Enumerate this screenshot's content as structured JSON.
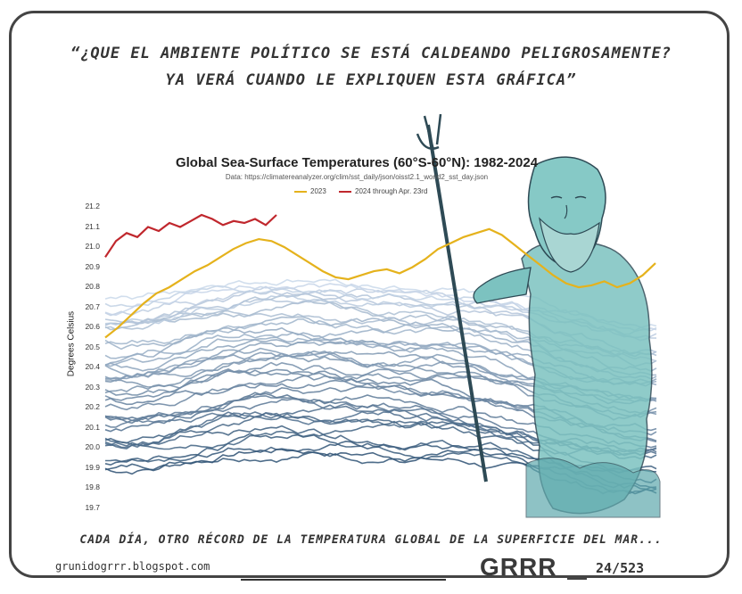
{
  "quote": {
    "line1": "“¿QUE EL AMBIENTE POLÍTICO SE ESTÁ CALDEANDO PELIGROSAMENTE?",
    "line2": "YA VERÁ CUANDO LE EXPLIQUEN ESTA GRÁFICA”"
  },
  "caption": "CADA DÍA, OTRO RÉCORD DE LA TEMPERATURA GLOBAL DE LA SUPERFICIE DEL MAR...",
  "blog_url": "grunidogrrr.blogspot.com",
  "signature": "GRRR",
  "strip_number": "24/523",
  "colors": {
    "year_2023": "#e5b21c",
    "year_2024": "#c0272d",
    "history_dark": "#2b4f72",
    "history_light": "#c9d8ea",
    "poseidon_fill": "#6fb8b8",
    "poseidon_line": "#2e4a55"
  },
  "chart_data": {
    "type": "line",
    "title": "Global Sea-Surface Temperatures (60°S-60°N): 1982-2024",
    "subtitle": "Data: https://climatereanalyzer.org/clim/sst_daily/json/oisst2.1_world2_sst_day.json",
    "xlabel": "",
    "ylabel": "Degrees Celsius",
    "ylim": [
      19.7,
      21.2
    ],
    "yticks": [
      "21.2",
      "21.1",
      "21.0",
      "20.9",
      "20.8",
      "20.7",
      "20.6",
      "20.5",
      "20.4",
      "20.3",
      "20.2",
      "20.1",
      "20.0",
      "19.9",
      "19.8",
      "19.7"
    ],
    "legend_position": "top-center",
    "series": [
      {
        "name": "2023",
        "values": [
          20.55,
          20.6,
          20.66,
          20.72,
          20.77,
          20.8,
          20.84,
          20.88,
          20.91,
          20.95,
          20.99,
          21.02,
          21.04,
          21.03,
          21.0,
          20.96,
          20.92,
          20.88,
          20.85,
          20.84,
          20.86,
          20.88,
          20.89,
          20.87,
          20.9,
          20.94,
          20.99,
          21.02,
          21.05,
          21.07,
          21.09,
          21.06,
          21.01,
          20.96,
          20.91,
          20.86,
          20.82,
          20.8,
          20.81,
          20.83,
          20.8,
          20.82,
          20.86,
          20.92
        ]
      },
      {
        "name": "2024 through Apr. 23rd",
        "values": [
          20.95,
          21.03,
          21.07,
          21.05,
          21.1,
          21.08,
          21.12,
          21.1,
          21.13,
          21.16,
          21.14,
          21.11,
          21.13,
          21.12,
          21.14,
          21.11,
          21.16
        ]
      }
    ]
  }
}
